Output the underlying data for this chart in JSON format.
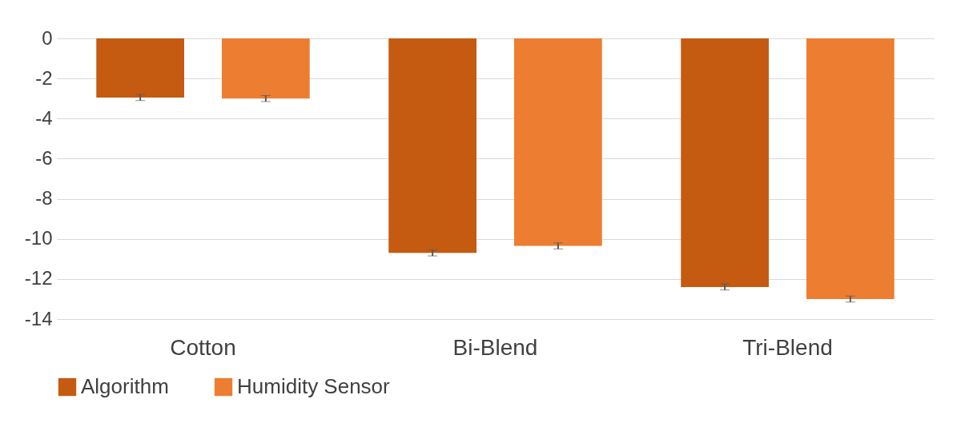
{
  "chart_data": {
    "type": "bar",
    "categories": [
      "Cotton",
      "Bi-Blend",
      "Tri-Blend"
    ],
    "series": [
      {
        "name": "Algorithm",
        "color": "#c55a11",
        "values": [
          -2.95,
          -10.7,
          -12.4
        ],
        "errors": [
          0.15,
          0.15,
          0.15
        ]
      },
      {
        "name": "Humidity Sensor",
        "color": "#ed7d31",
        "values": [
          -3.0,
          -10.35,
          -13.0
        ],
        "errors": [
          0.15,
          0.15,
          0.15
        ]
      }
    ],
    "ylim": [
      -14,
      0
    ],
    "yticks": [
      0,
      -2,
      -4,
      -6,
      -8,
      -10,
      -12,
      -14
    ],
    "grid": "y",
    "legend": "bottom"
  }
}
